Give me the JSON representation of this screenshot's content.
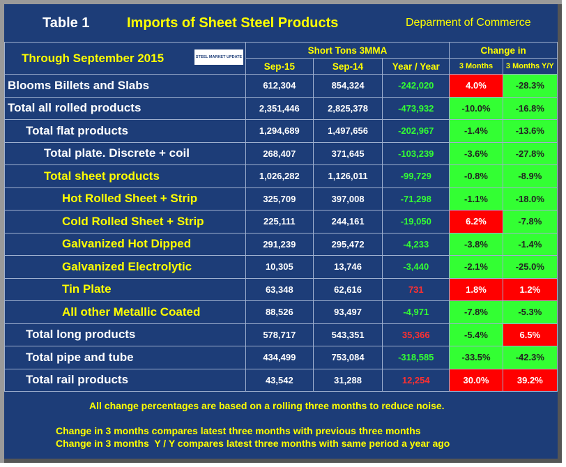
{
  "header": {
    "table_label": "Table 1",
    "title": "Imports of Sheet Steel Products",
    "source": "Deparment of Commerce",
    "period": "Through September 2015",
    "logo": "STEEL MARKET UPDATE"
  },
  "table": {
    "group_headers": [
      "Short Tons 3MMA",
      "Change in"
    ],
    "columns": [
      "Sep-15",
      "Sep-14",
      "Year / Year",
      "3 Months",
      "3 Months Y/Y"
    ],
    "rows": [
      [
        "Blooms Billets and Slabs",
        "612,304",
        "854,324",
        "-242,020",
        "4.0%",
        "-28.3%"
      ],
      [
        "Total all rolled products",
        "2,351,446",
        "2,825,378",
        "-473,932",
        "-10.0%",
        "-16.8%"
      ],
      [
        "Total flat products",
        "1,294,689",
        "1,497,656",
        "-202,967",
        "-1.4%",
        "-13.6%"
      ],
      [
        "Total plate. Discrete + coil",
        "268,407",
        "371,645",
        "-103,239",
        "-3.6%",
        "-27.8%"
      ],
      [
        "Total sheet products",
        "1,026,282",
        "1,126,011",
        "-99,729",
        "-0.8%",
        "-8.9%"
      ],
      [
        "Hot Rolled Sheet + Strip",
        "325,709",
        "397,008",
        "-71,298",
        "-1.1%",
        "-18.0%"
      ],
      [
        "Cold Rolled Sheet + Strip",
        "225,111",
        "244,161",
        "-19,050",
        "6.2%",
        "-7.8%"
      ],
      [
        "Galvanized Hot Dipped",
        "291,239",
        "295,472",
        "-4,233",
        "-3.8%",
        "-1.4%"
      ],
      [
        "Galvanized Electrolytic",
        "10,305",
        "13,746",
        "-3,440",
        "-2.1%",
        "-25.0%"
      ],
      [
        "Tin Plate",
        "63,348",
        "62,616",
        "731",
        "1.8%",
        "1.2%"
      ],
      [
        "All other Metallic Coated",
        "88,526",
        "93,497",
        "-4,971",
        "-7.8%",
        "-5.3%"
      ],
      [
        "Total long products",
        "578,717",
        "543,351",
        "35,366",
        "-5.4%",
        "6.5%"
      ],
      [
        "Total pipe and tube",
        "434,499",
        "753,084",
        "-318,585",
        "-33.5%",
        "-42.3%"
      ],
      [
        "Total rail products",
        "43,542",
        "31,288",
        "12,254",
        "30.0%",
        "39.2%"
      ]
    ]
  },
  "notes": [
    "All change percentages are based on a rolling three months to reduce noise.",
    "Change in 3 months compares latest three months with previous three months",
    "Change in 3 months  Y / Y compares latest three months with same period a year ago"
  ]
}
